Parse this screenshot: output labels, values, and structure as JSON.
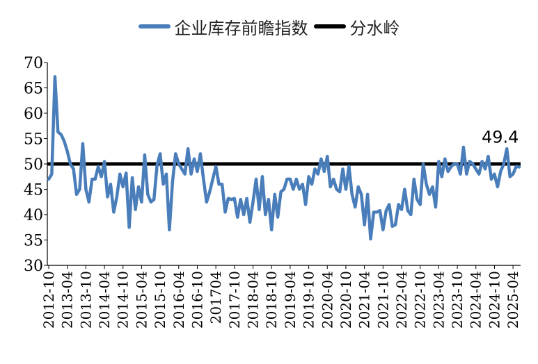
{
  "colors": {
    "series": "#4a7ebb",
    "threshold": "#000000",
    "axis": "#000000"
  },
  "legend": {
    "series_label": "企业库存前瞻指数",
    "threshold_label": "分水岭"
  },
  "chart_data": {
    "type": "line",
    "title": "",
    "xlabel": "",
    "ylabel": "",
    "ylim": [
      30,
      70
    ],
    "yticks": [
      30,
      35,
      40,
      45,
      50,
      55,
      60,
      65,
      70
    ],
    "grid": false,
    "legend_position": "top-center",
    "x_start": "2012-10",
    "x_tick_labels": [
      "2012-10",
      "2013-04",
      "2013-10",
      "2014-04",
      "2014-10",
      "2015-04",
      "2015-10",
      "2016-04",
      "2016-10",
      "2017-04",
      "2017-10",
      "2018-04",
      "2018-10",
      "2019-04",
      "2019-10",
      "2020-04",
      "2020-10",
      "2021-04",
      "2021-10",
      "2022-04",
      "2022-10",
      "2023-04",
      "2023-10",
      "2024-04",
      "2024-10",
      "2025-04"
    ],
    "x_tick_display": [
      "2012-10",
      "2013-04",
      "2013-10",
      "2014-04",
      "2014-10",
      "2015-04",
      "2015-10",
      "2016-04",
      "2016-10",
      "201704",
      "2017-10",
      "2018-04",
      "2018-10",
      "2019-04",
      "2019-10",
      "2020-04",
      "2020-10",
      "2021-04",
      "2021-10",
      "2022-04",
      "2022-10",
      "2023-04",
      "2023-10",
      "2024-04",
      "2024-10",
      "2025-04"
    ],
    "annotation": "49.4",
    "series": [
      {
        "name": "企业库存前瞻指数",
        "values": [
          47.0,
          48.0,
          67.2,
          56.3,
          55.8,
          54.5,
          52.5,
          50.0,
          49.0,
          44.0,
          45.0,
          54.0,
          45.0,
          42.5,
          47.0,
          47.0,
          49.5,
          47.5,
          50.5,
          43.5,
          46.0,
          40.5,
          43.5,
          48.0,
          45.5,
          48.2,
          37.5,
          47.3,
          41.0,
          45.5,
          42.5,
          51.8,
          44.0,
          42.5,
          43.0,
          49.8,
          52.0,
          46.0,
          48.0,
          37.0,
          46.5,
          52.0,
          50.0,
          49.0,
          48.0,
          53.0,
          48.0,
          51.0,
          48.5,
          52.0,
          47.0,
          42.5,
          44.5,
          47.0,
          49.5,
          46.0,
          46.0,
          40.5,
          43.2,
          43.0,
          43.2,
          39.5,
          43.0,
          40.0,
          43.2,
          38.5,
          42.5,
          47.0,
          41.0,
          47.5,
          40.0,
          43.0,
          37.0,
          44.0,
          39.5,
          44.5,
          45.0,
          47.0,
          47.0,
          45.0,
          47.0,
          45.0,
          46.0,
          42.0,
          47.5,
          46.0,
          49.0,
          48.0,
          51.0,
          48.5,
          51.5,
          45.5,
          47.0,
          45.0,
          44.5,
          49.0,
          45.0,
          49.5,
          44.0,
          41.5,
          45.5,
          44.0,
          38.0,
          44.0,
          35.2,
          40.5,
          40.5,
          40.8,
          37.0,
          40.8,
          42.0,
          37.7,
          38.0,
          42.0,
          41.0,
          45.0,
          40.8,
          40.0,
          47.0,
          43.0,
          42.0,
          50.0,
          46.0,
          44.0,
          45.5,
          41.5,
          50.5,
          47.5,
          51.0,
          48.5,
          49.5,
          50.0,
          50.0,
          48.0,
          53.3,
          48.0,
          50.5,
          50.0,
          49.0,
          48.0,
          50.5,
          49.0,
          51.5,
          47.0,
          48.0,
          45.5,
          48.5,
          50.0,
          53.0,
          47.5,
          48.0,
          49.5,
          49.4
        ]
      },
      {
        "name": "分水岭",
        "constant": 50
      }
    ]
  }
}
